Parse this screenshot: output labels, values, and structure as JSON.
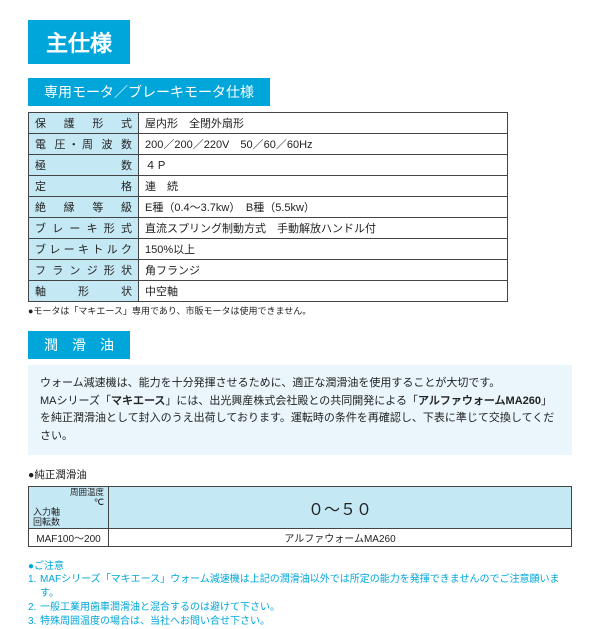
{
  "colors": {
    "accent": "#00a6d9",
    "header_bg": "#c5e8f5",
    "border": "#444444",
    "desc_bg": "#eaf6fb"
  },
  "title_main": "主仕様",
  "section_motor": {
    "heading": "専用モータ／ブレーキモータ仕様",
    "rows": [
      {
        "label": "保　護　形　式",
        "value": "屋内形　全閉外扇形"
      },
      {
        "label": "電 圧・周 波 数",
        "value": "200／200／220V　50／60／60Hz"
      },
      {
        "label": "極　　　　　数",
        "value": "４Ｐ"
      },
      {
        "label": "定　　　　　格",
        "value": "連　続"
      },
      {
        "label": "絶　縁　等　級",
        "value": "E種（0.4～3.7kw）　B種（5.5kw）"
      },
      {
        "label": "ブ レ ー キ 形 式",
        "value": "直流スプリング制動方式　手動解放ハンドル付"
      },
      {
        "label": "ブレーキトルク",
        "value": "150%以上"
      },
      {
        "label": "フ ラ ン ジ 形 状",
        "value": "角フランジ"
      },
      {
        "label": "軸　　形　　状",
        "value": "中空軸"
      }
    ],
    "note": "●モータは「マキエース」専用であり、市販モータは使用できません。"
  },
  "section_oil": {
    "heading": "潤　滑　油",
    "desc_p1a": "ウォーム減速機は、能力を十分発揮させるために、適正な潤滑油を使用することが大切です。",
    "desc_p2a": "MAシリーズ「",
    "desc_p2b": "マキエース",
    "desc_p2c": "」には、出光興産株式会社殿との共同開発による「",
    "desc_p2d": "アルファウォームMA260",
    "desc_p2e": "」を純正潤滑油として封入のうえ出荷しております。運転時の条件を再確認し、下表に準じて交換してください。",
    "table_label": "●純正潤滑油",
    "table": {
      "hdr_left_top": "入力軸",
      "hdr_left_bot": "回転数",
      "hdr_right": "周囲温度",
      "hdr_unit": "℃",
      "range": "０～５０",
      "row_left": "MAF100～200",
      "row_right": "アルファウォームMA260"
    },
    "caution_title": "●ご注意",
    "cautions": [
      {
        "n": "1.",
        "t": "MAFシリーズ「マキエース」ウォーム減速機は上記の潤滑油以外では所定の能力を発揮できませんのでご注意願います。"
      },
      {
        "n": "2.",
        "t": "一般工業用歯車潤滑油と混合するのは避けて下さい。"
      },
      {
        "n": "3.",
        "t": "特殊周囲温度の場合は、当社へお問い合せ下さい。"
      }
    ]
  }
}
